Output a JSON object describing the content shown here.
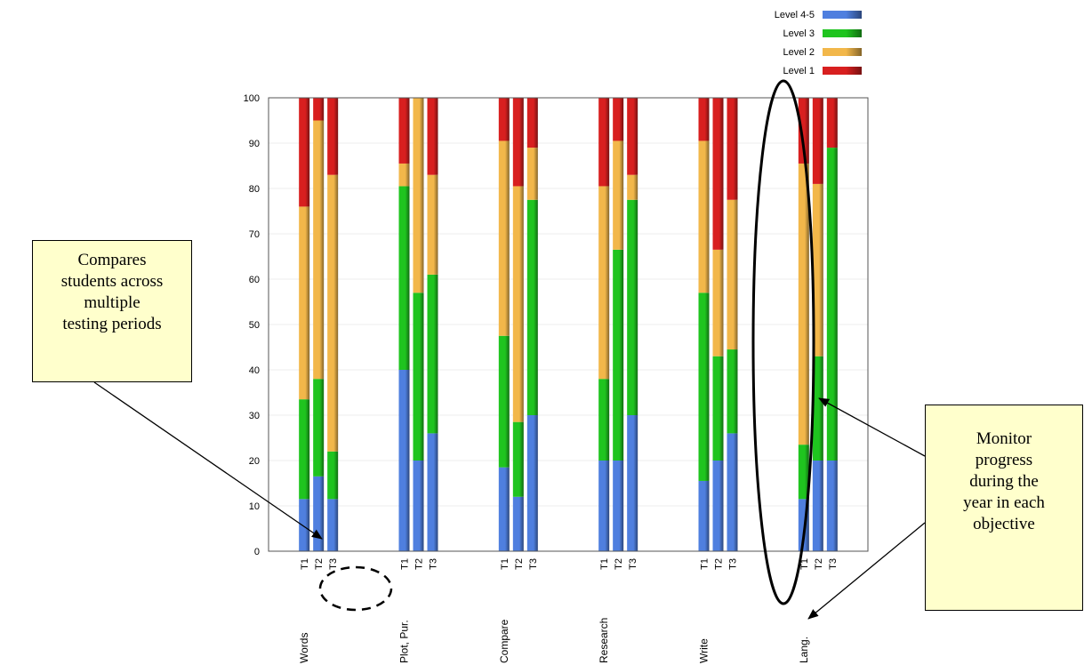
{
  "chart_data": {
    "type": "bar",
    "stacked": true,
    "percent_stacked": true,
    "ylim": [
      0,
      100
    ],
    "yticks": [
      0,
      10,
      20,
      30,
      40,
      50,
      60,
      70,
      80,
      90,
      100
    ],
    "grid": true,
    "legend_position": "top-right",
    "colors": {
      "Level 4-5": "#4f7fdf",
      "Level 3": "#1fc41f",
      "Level 2": "#f2b74a",
      "Level 1": "#d81f1f"
    },
    "groups": [
      {
        "label": "Words",
        "periods": [
          {
            "label": "T1",
            "Level 4-5": 11.5,
            "Level 3": 22,
            "Level 2": 42.5,
            "Level 1": 24
          },
          {
            "label": "T2",
            "Level 4-5": 16.5,
            "Level 3": 21.5,
            "Level 2": 57,
            "Level 1": 5
          },
          {
            "label": "T3",
            "Level 4-5": 11.5,
            "Level 3": 10.5,
            "Level 2": 61,
            "Level 1": 17
          }
        ]
      },
      {
        "label": "Plot, Pur.",
        "periods": [
          {
            "label": "T1",
            "Level 4-5": 40,
            "Level 3": 40.5,
            "Level 2": 5,
            "Level 1": 14.5
          },
          {
            "label": "T2",
            "Level 4-5": 20,
            "Level 3": 37,
            "Level 2": 43,
            "Level 1": 0
          },
          {
            "label": "T3",
            "Level 4-5": 26,
            "Level 3": 35,
            "Level 2": 22,
            "Level 1": 17
          }
        ]
      },
      {
        "label": "Compare",
        "periods": [
          {
            "label": "T1",
            "Level 4-5": 18.5,
            "Level 3": 29,
            "Level 2": 43,
            "Level 1": 9.5
          },
          {
            "label": "T2",
            "Level 4-5": 12,
            "Level 3": 16.5,
            "Level 2": 52,
            "Level 1": 19.5
          },
          {
            "label": "T3",
            "Level 4-5": 30,
            "Level 3": 47.5,
            "Level 2": 11.5,
            "Level 1": 11
          }
        ]
      },
      {
        "label": "Research",
        "periods": [
          {
            "label": "T1",
            "Level 4-5": 20,
            "Level 3": 18,
            "Level 2": 42.5,
            "Level 1": 19.5
          },
          {
            "label": "T2",
            "Level 4-5": 20,
            "Level 3": 46.5,
            "Level 2": 24,
            "Level 1": 9.5
          },
          {
            "label": "T3",
            "Level 4-5": 30,
            "Level 3": 47.5,
            "Level 2": 5.5,
            "Level 1": 17
          }
        ]
      },
      {
        "label": "Write",
        "periods": [
          {
            "label": "T1",
            "Level 4-5": 15.5,
            "Level 3": 41.5,
            "Level 2": 33.5,
            "Level 1": 9.5
          },
          {
            "label": "T2",
            "Level 4-5": 20,
            "Level 3": 23,
            "Level 2": 23.5,
            "Level 1": 33.5
          },
          {
            "label": "T3",
            "Level 4-5": 26,
            "Level 3": 18.5,
            "Level 2": 33,
            "Level 1": 22.5
          }
        ]
      },
      {
        "label": "Lang.",
        "periods": [
          {
            "label": "T1",
            "Level 4-5": 11.5,
            "Level 3": 12,
            "Level 2": 62,
            "Level 1": 14.5
          },
          {
            "label": "T2",
            "Level 4-5": 20,
            "Level 3": 23,
            "Level 2": 38,
            "Level 1": 19
          },
          {
            "label": "T3",
            "Level 4-5": 20,
            "Level 3": 69,
            "Level 2": 0,
            "Level 1": 11
          }
        ]
      }
    ]
  },
  "legend": [
    "Level 4-5",
    "Level 3",
    "Level 2",
    "Level 1"
  ],
  "annotations": {
    "left_note": "Compares\nstudents across\nmultiple\ntesting periods",
    "right_note": "Monitor\nprogress\nduring the\nyear in each\nobjective"
  }
}
